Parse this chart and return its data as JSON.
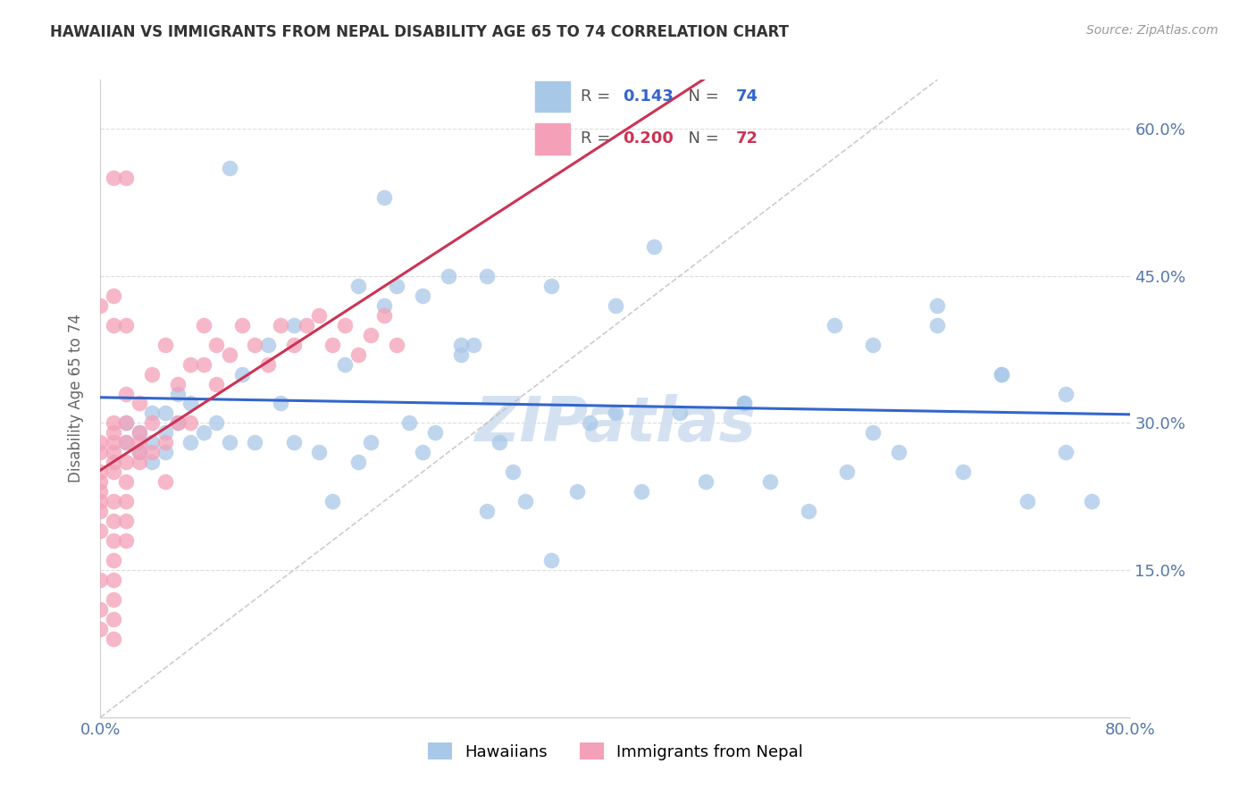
{
  "title": "HAWAIIAN VS IMMIGRANTS FROM NEPAL DISABILITY AGE 65 TO 74 CORRELATION CHART",
  "source": "Source: ZipAtlas.com",
  "ylabel": "Disability Age 65 to 74",
  "xlim": [
    0.0,
    0.8
  ],
  "ylim": [
    0.0,
    0.65
  ],
  "blue_color": "#A8C8E8",
  "pink_color": "#F4A0B8",
  "blue_line_color": "#3366CC",
  "pink_line_color": "#CC3355",
  "ref_line_color": "#C0C0C0",
  "grid_color": "#DDDDDD",
  "axis_label_color": "#5577AA",
  "watermark_color": "#D0DEF0",
  "legend_R_blue": "0.143",
  "legend_N_blue": "74",
  "legend_R_pink": "0.200",
  "legend_N_pink": "72",
  "background_color": "#FFFFFF",
  "blue_x": [
    0.02,
    0.02,
    0.03,
    0.03,
    0.04,
    0.04,
    0.04,
    0.05,
    0.05,
    0.05,
    0.06,
    0.06,
    0.07,
    0.07,
    0.08,
    0.09,
    0.1,
    0.11,
    0.12,
    0.13,
    0.14,
    0.15,
    0.17,
    0.18,
    0.19,
    0.2,
    0.21,
    0.22,
    0.23,
    0.24,
    0.25,
    0.26,
    0.27,
    0.28,
    0.29,
    0.3,
    0.31,
    0.32,
    0.33,
    0.35,
    0.37,
    0.38,
    0.4,
    0.42,
    0.43,
    0.45,
    0.47,
    0.5,
    0.52,
    0.55,
    0.57,
    0.58,
    0.6,
    0.62,
    0.65,
    0.67,
    0.7,
    0.72,
    0.75,
    0.77,
    0.22,
    0.28,
    0.1,
    0.35,
    0.4,
    0.2,
    0.15,
    0.3,
    0.25,
    0.5,
    0.6,
    0.65,
    0.7,
    0.75
  ],
  "blue_y": [
    0.28,
    0.3,
    0.27,
    0.29,
    0.28,
    0.31,
    0.26,
    0.29,
    0.31,
    0.27,
    0.3,
    0.33,
    0.28,
    0.32,
    0.29,
    0.3,
    0.28,
    0.35,
    0.28,
    0.38,
    0.32,
    0.28,
    0.27,
    0.22,
    0.36,
    0.26,
    0.28,
    0.42,
    0.44,
    0.3,
    0.27,
    0.29,
    0.45,
    0.37,
    0.38,
    0.21,
    0.28,
    0.25,
    0.22,
    0.16,
    0.23,
    0.3,
    0.31,
    0.23,
    0.48,
    0.31,
    0.24,
    0.32,
    0.24,
    0.21,
    0.4,
    0.25,
    0.29,
    0.27,
    0.42,
    0.25,
    0.35,
    0.22,
    0.27,
    0.22,
    0.53,
    0.38,
    0.56,
    0.44,
    0.42,
    0.44,
    0.4,
    0.45,
    0.43,
    0.32,
    0.38,
    0.4,
    0.35,
    0.33
  ],
  "pink_x": [
    0.0,
    0.0,
    0.0,
    0.0,
    0.0,
    0.0,
    0.0,
    0.0,
    0.0,
    0.0,
    0.0,
    0.01,
    0.01,
    0.01,
    0.01,
    0.01,
    0.01,
    0.01,
    0.01,
    0.01,
    0.01,
    0.01,
    0.01,
    0.01,
    0.01,
    0.02,
    0.02,
    0.02,
    0.02,
    0.02,
    0.02,
    0.02,
    0.02,
    0.03,
    0.03,
    0.03,
    0.03,
    0.03,
    0.04,
    0.04,
    0.04,
    0.05,
    0.05,
    0.05,
    0.06,
    0.06,
    0.07,
    0.07,
    0.08,
    0.08,
    0.09,
    0.09,
    0.1,
    0.11,
    0.12,
    0.13,
    0.14,
    0.15,
    0.16,
    0.17,
    0.18,
    0.19,
    0.2,
    0.21,
    0.22,
    0.23,
    0.01,
    0.02,
    0.01,
    0.02,
    0.0,
    0.01
  ],
  "pink_y": [
    0.27,
    0.25,
    0.24,
    0.22,
    0.28,
    0.23,
    0.21,
    0.19,
    0.14,
    0.11,
    0.09,
    0.29,
    0.27,
    0.25,
    0.22,
    0.2,
    0.18,
    0.16,
    0.14,
    0.12,
    0.1,
    0.08,
    0.3,
    0.28,
    0.26,
    0.33,
    0.3,
    0.28,
    0.26,
    0.24,
    0.22,
    0.2,
    0.18,
    0.32,
    0.28,
    0.26,
    0.29,
    0.27,
    0.35,
    0.3,
    0.27,
    0.38,
    0.28,
    0.24,
    0.34,
    0.3,
    0.36,
    0.3,
    0.4,
    0.36,
    0.38,
    0.34,
    0.37,
    0.4,
    0.38,
    0.36,
    0.4,
    0.38,
    0.4,
    0.41,
    0.38,
    0.4,
    0.37,
    0.39,
    0.41,
    0.38,
    0.55,
    0.55,
    0.4,
    0.4,
    0.42,
    0.43
  ]
}
